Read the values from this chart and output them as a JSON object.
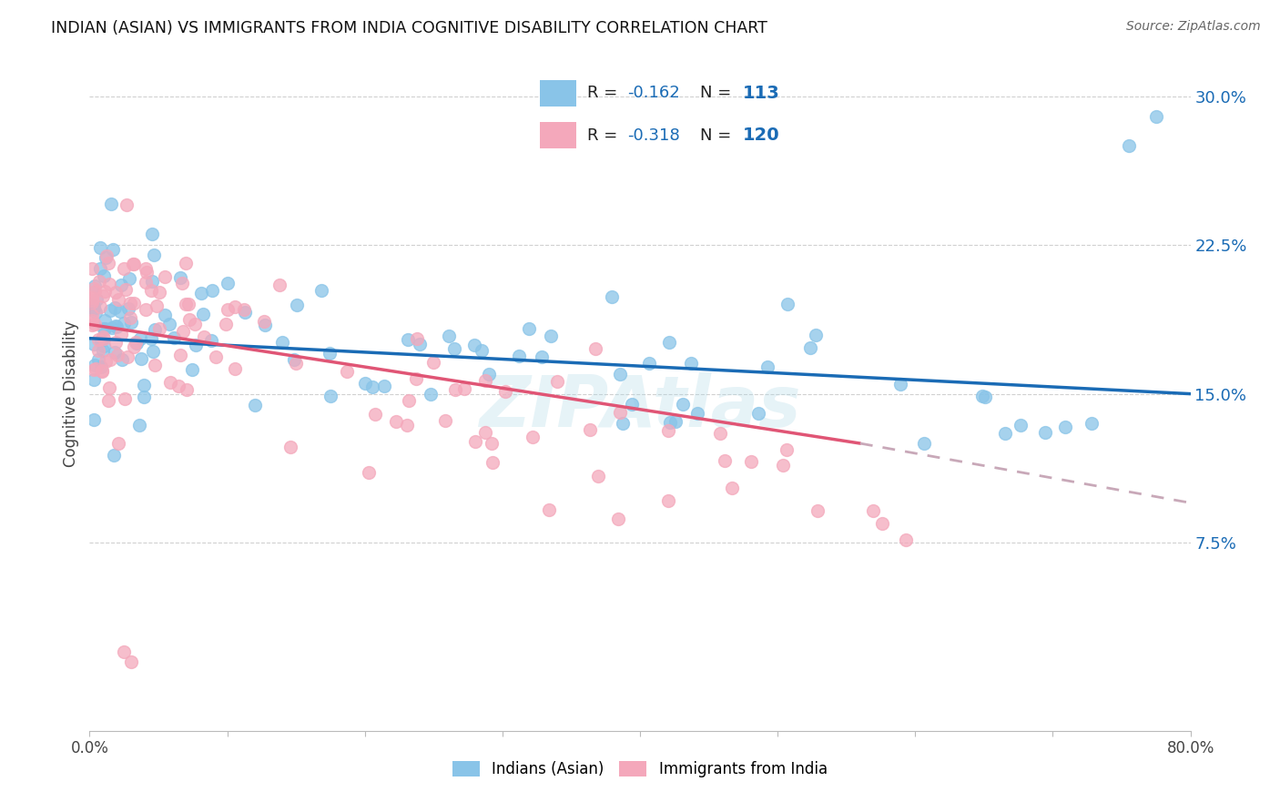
{
  "title": "INDIAN (ASIAN) VS IMMIGRANTS FROM INDIA COGNITIVE DISABILITY CORRELATION CHART",
  "source": "Source: ZipAtlas.com",
  "ylabel": "Cognitive Disability",
  "yticks": [
    7.5,
    15.0,
    22.5,
    30.0
  ],
  "ytick_labels": [
    "7.5%",
    "15.0%",
    "22.5%",
    "30.0%"
  ],
  "xmin": 0.0,
  "xmax": 80.0,
  "ymin": -2.0,
  "ymax": 32.0,
  "r_blue": -0.162,
  "n_blue": 113,
  "r_pink": -0.318,
  "n_pink": 120,
  "color_blue": "#89c4e8",
  "color_pink": "#f4a8bb",
  "trendline_blue": "#1a6bb5",
  "trendline_pink": "#e05575",
  "trendline_pink_dash_color": "#c8a8b8",
  "legend_label_blue": "Indians (Asian)",
  "legend_label_pink": "Immigrants from India",
  "blue_trend_x0": 0.0,
  "blue_trend_y0": 17.8,
  "blue_trend_x1": 80.0,
  "blue_trend_y1": 15.0,
  "pink_trend_x0": 0.0,
  "pink_trend_y0": 18.5,
  "pink_trend_x1": 56.0,
  "pink_trend_y1": 12.5,
  "pink_dash_x0": 56.0,
  "pink_dash_y0": 12.5,
  "pink_dash_x1": 80.0,
  "pink_dash_y1": 9.5
}
